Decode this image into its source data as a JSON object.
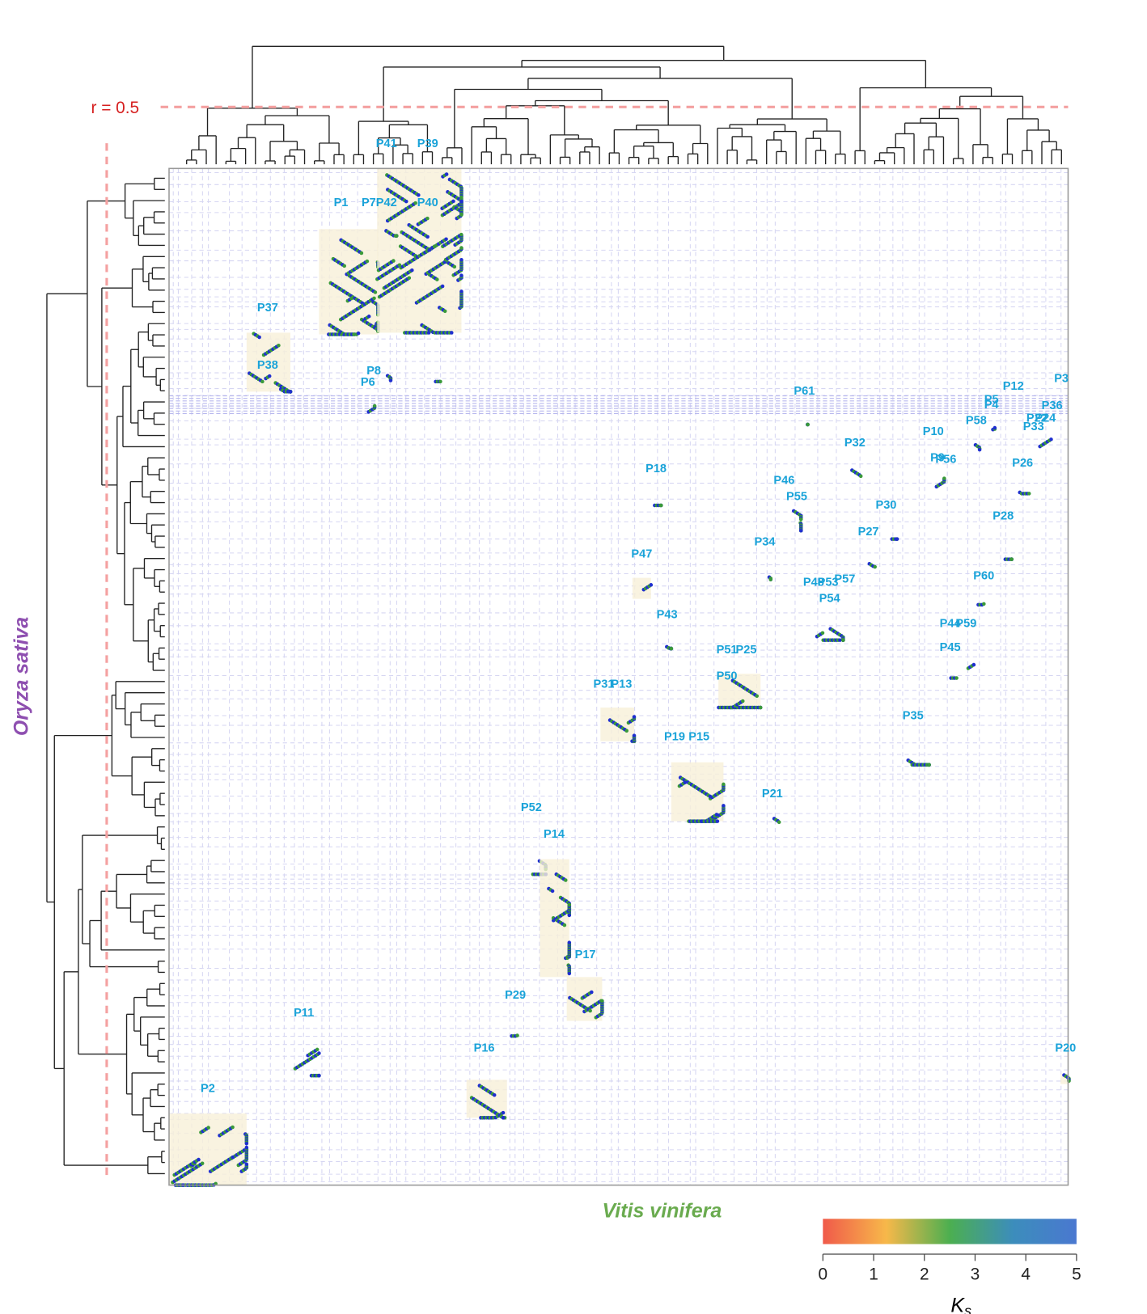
{
  "chart_data": {
    "type": "dotplot",
    "threshold_label": "r = 0.5",
    "y_label": "Oryza sativa",
    "x_label": "Vitis vinifera",
    "block_labels": [
      "P41",
      "P39",
      "P1",
      "P7",
      "P42",
      "P40",
      "P37",
      "P38",
      "P8",
      "P6",
      "P61",
      "P12",
      "P3",
      "P5",
      "P4",
      "P36",
      "P58",
      "P22",
      "P24",
      "P33",
      "P10",
      "P32",
      "P9",
      "P56",
      "P26",
      "P18",
      "P46",
      "P55",
      "P30",
      "P28",
      "P27",
      "P34",
      "P47",
      "P60",
      "P57",
      "P48",
      "P53",
      "P54",
      "P43",
      "P44",
      "P59",
      "P45",
      "P51",
      "P25",
      "P50",
      "P31",
      "P13",
      "P35",
      "P19",
      "P15",
      "P21",
      "P52",
      "P14",
      "P17",
      "P29",
      "P11",
      "P16",
      "P20",
      "P2"
    ],
    "colorbar": {
      "clim": [
        0,
        5
      ],
      "ticks": [
        0,
        1,
        2,
        3,
        4,
        5
      ],
      "label": "K",
      "label_sub": "s",
      "colors": [
        "#f05a4a",
        "#f7b84a",
        "#4caf50",
        "#3c8dbc",
        "#4a78d0"
      ]
    },
    "dot_colors": [
      "#1f2fd0",
      "#3a9a3a"
    ]
  }
}
